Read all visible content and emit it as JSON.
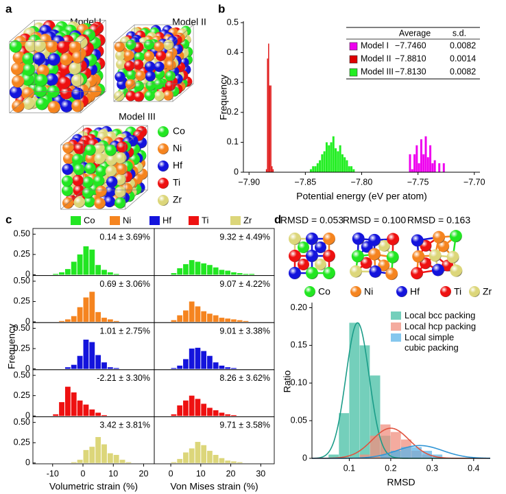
{
  "panel_a": {
    "label": "a",
    "models": [
      "Model I",
      "Model II",
      "Model III"
    ]
  },
  "clusters": {
    "labels": [
      "RMSD = 0.053",
      "RMSD = 0.100",
      "RMSD = 0.163"
    ]
  },
  "chart_data": [
    {
      "type": "histogram",
      "label": "b",
      "xlabel": "Potential energy (eV per atom)",
      "ylabel": "Frequency",
      "xlim": [
        -7.905,
        -7.695
      ],
      "xticks": [
        {
          "value": -7.9,
          "label": "−7.90"
        },
        {
          "value": -7.85,
          "label": "−7.85"
        },
        {
          "value": -7.8,
          "label": "−7.80"
        },
        {
          "value": -7.75,
          "label": "−7.75"
        },
        {
          "value": -7.7,
          "label": "−7.70"
        }
      ],
      "ylim": [
        0,
        0.5
      ],
      "yticks": [
        0,
        0.1,
        0.2,
        0.3,
        0.4,
        0.5
      ],
      "series": [
        {
          "name": "Model I",
          "color": "#ee00ee",
          "bins": [
            -7.758,
            -7.756,
            -7.754,
            -7.752,
            -7.75,
            -7.748,
            -7.746,
            -7.744,
            -7.742,
            -7.74,
            -7.738,
            -7.736,
            -7.734,
            -7.732,
            -7.73,
            -7.728,
            -7.726
          ],
          "values": [
            0.06,
            0.01,
            0.06,
            0.09,
            0.03,
            0.11,
            0.06,
            0.12,
            0.05,
            0.09,
            0.03,
            0.04,
            0,
            0.03,
            0,
            0.03
          ]
        },
        {
          "name": "Model II",
          "color": "#dd0000",
          "bins": [
            -7.885,
            -7.884,
            -7.883,
            -7.882,
            -7.881,
            -7.88,
            -7.879,
            -7.878
          ],
          "values": [
            0.01,
            0.38,
            0.43,
            0.29,
            0.29,
            0.02,
            0.01
          ]
        },
        {
          "name": "Model III",
          "color": "#22ee22",
          "bins": [
            -7.846,
            -7.844,
            -7.842,
            -7.84,
            -7.838,
            -7.836,
            -7.834,
            -7.832,
            -7.83,
            -7.828,
            -7.826,
            -7.824,
            -7.822,
            -7.82,
            -7.818,
            -7.816,
            -7.814,
            -7.812,
            -7.81,
            -7.808,
            -7.806
          ],
          "values": [
            0.01,
            0.02,
            0.02,
            0.03,
            0.04,
            0.06,
            0.07,
            0.1,
            0.09,
            0.1,
            0.12,
            0.08,
            0.07,
            0.09,
            0.06,
            0.05,
            0.04,
            0.02,
            0.02,
            0.01
          ]
        }
      ],
      "table": {
        "columns": [
          "Average",
          "s.d."
        ],
        "rows": [
          [
            "−7.7460",
            "0.0082"
          ],
          [
            "−7.8810",
            "0.0014"
          ],
          [
            "−7.8130",
            "0.0082"
          ]
        ]
      }
    },
    {
      "type": "histogram-grid",
      "label": "c",
      "ylabel": "Frequency",
      "ylim": [
        -0.01,
        0.57
      ],
      "yticks": [
        0,
        0.25,
        {
          "value": 0.5,
          "label": "0.50"
        }
      ],
      "panels": [
        {
          "xlabel": "Volumetric strain (%)",
          "xlim": [
            -16.5,
            23.5
          ],
          "xticks": [
            -10,
            0,
            10,
            20
          ],
          "bins": [
            -10,
            -8,
            -6,
            -4,
            -2,
            0,
            2,
            4,
            6,
            8,
            10,
            12,
            14,
            16
          ]
        },
        {
          "xlabel": "Von Mises strain (%)",
          "xlim": [
            -5.5,
            34.5
          ],
          "xticks": [
            0,
            10,
            20,
            30
          ],
          "bins": [
            0,
            2,
            4,
            6,
            8,
            10,
            12,
            14,
            16,
            18,
            20,
            22,
            24,
            26,
            28,
            30
          ]
        }
      ],
      "series": [
        {
          "name": "Co",
          "color": "#22e622",
          "annotations": [
            "0.14 ± 3.69%",
            "9.32 ± 4.49%"
          ],
          "values": [
            [
              0.01,
              0.03,
              0.07,
              0.16,
              0.25,
              0.35,
              0.31,
              0.12,
              0.06,
              0.03,
              0.01,
              0,
              0
            ],
            [
              0.02,
              0.08,
              0.13,
              0.18,
              0.16,
              0.14,
              0.12,
              0.09,
              0.06,
              0.05,
              0.03,
              0.02,
              0.01,
              0.01,
              0
            ]
          ]
        },
        {
          "name": "Ni",
          "color": "#f5841f",
          "annotations": [
            "0.69 ± 3.06%",
            "9.07 ± 4.22%"
          ],
          "values": [
            [
              0,
              0.01,
              0.03,
              0.07,
              0.18,
              0.3,
              0.37,
              0.12,
              0.05,
              0.03,
              0.01,
              0,
              0
            ],
            [
              0.02,
              0.08,
              0.14,
              0.25,
              0.19,
              0.13,
              0.1,
              0.08,
              0.05,
              0.04,
              0.03,
              0.02,
              0.01,
              0,
              0
            ]
          ]
        },
        {
          "name": "Hf",
          "color": "#1414dc",
          "annotations": [
            "1.01 ± 2.75%",
            "9.01 ± 3.38%"
          ],
          "values": [
            [
              0,
              0,
              0.02,
              0.05,
              0.16,
              0.36,
              0.33,
              0.17,
              0.08,
              0.02,
              0.01,
              0,
              0
            ],
            [
              0.01,
              0.04,
              0.12,
              0.25,
              0.26,
              0.22,
              0.16,
              0.08,
              0.04,
              0.02,
              0.01,
              0,
              0,
              0,
              0
            ]
          ]
        },
        {
          "name": "Ti",
          "color": "#ee1111",
          "annotations": [
            "-2.21 ± 3.30%",
            "8.26 ± 3.62%"
          ],
          "values": [
            [
              0.02,
              0.17,
              0.36,
              0.29,
              0.19,
              0.14,
              0.08,
              0.04,
              0.01,
              0,
              0,
              0,
              0
            ],
            [
              0.02,
              0.13,
              0.19,
              0.25,
              0.21,
              0.15,
              0.1,
              0.07,
              0.04,
              0.02,
              0.01,
              0,
              0,
              0,
              0
            ]
          ]
        },
        {
          "name": "Zr",
          "color": "#dcd67a",
          "annotations": [
            "3.42 ± 3.81%",
            "9.71 ± 3.58%"
          ],
          "values": [
            [
              0,
              0,
              0,
              0.01,
              0.04,
              0.16,
              0.2,
              0.32,
              0.23,
              0.12,
              0.1,
              0.04,
              0.01
            ],
            [
              0.01,
              0.05,
              0.13,
              0.18,
              0.26,
              0.22,
              0.15,
              0.1,
              0.06,
              0.03,
              0.02,
              0.01,
              0,
              0,
              0
            ]
          ]
        }
      ]
    },
    {
      "type": "histogram",
      "label": "d",
      "xlabel": "RMSD",
      "ylabel": "Ratio",
      "xlim": [
        0.01,
        0.44
      ],
      "xticks": [
        0.1,
        0.2,
        0.3,
        0.4
      ],
      "ylim": [
        0,
        0.205
      ],
      "yticks": [
        0,
        0.05,
        {
          "value": 0.1,
          "label": "0.10"
        },
        0.15,
        {
          "value": 0.2,
          "label": "0.20"
        }
      ],
      "series": [
        {
          "name": "Local bcc packing",
          "color": "#55c4acd0",
          "bins": [
            0.05,
            0.075,
            0.1,
            0.125,
            0.15,
            0.175,
            0.2,
            0.225,
            0.25,
            0.275,
            0.3,
            0.325,
            0.35
          ],
          "values": [
            0.005,
            0.06,
            0.18,
            0.15,
            0.11,
            0.03,
            0.01,
            0,
            0,
            0,
            0,
            0
          ],
          "fit": {
            "mean": 0.12,
            "sd": 0.028,
            "peak": 0.18,
            "color": "#1a9c88"
          }
        },
        {
          "name": "Local hcp packing",
          "color": "#f0907fc0",
          "bins": [
            0.05,
            0.075,
            0.1,
            0.125,
            0.15,
            0.175,
            0.2,
            0.225,
            0.25,
            0.275,
            0.3,
            0.325,
            0.35
          ],
          "values": [
            0,
            0,
            0,
            0.005,
            0.03,
            0.045,
            0.035,
            0.025,
            0.01,
            0.005,
            0,
            0
          ],
          "fit": {
            "mean": 0.2,
            "sd": 0.045,
            "peak": 0.04,
            "color": "#e0533f"
          }
        },
        {
          "name": "Local simple cubic packing",
          "color": "#5db4e8c0",
          "bins": [
            0.05,
            0.075,
            0.1,
            0.125,
            0.15,
            0.175,
            0.2,
            0.225,
            0.25,
            0.275,
            0.3,
            0.325,
            0.35
          ],
          "values": [
            0,
            0,
            0,
            0,
            0,
            0.005,
            0.01,
            0.015,
            0.015,
            0.01,
            0.005,
            0
          ],
          "fit": {
            "mean": 0.27,
            "sd": 0.055,
            "peak": 0.017,
            "color": "#2f95d6"
          }
        }
      ]
    }
  ]
}
